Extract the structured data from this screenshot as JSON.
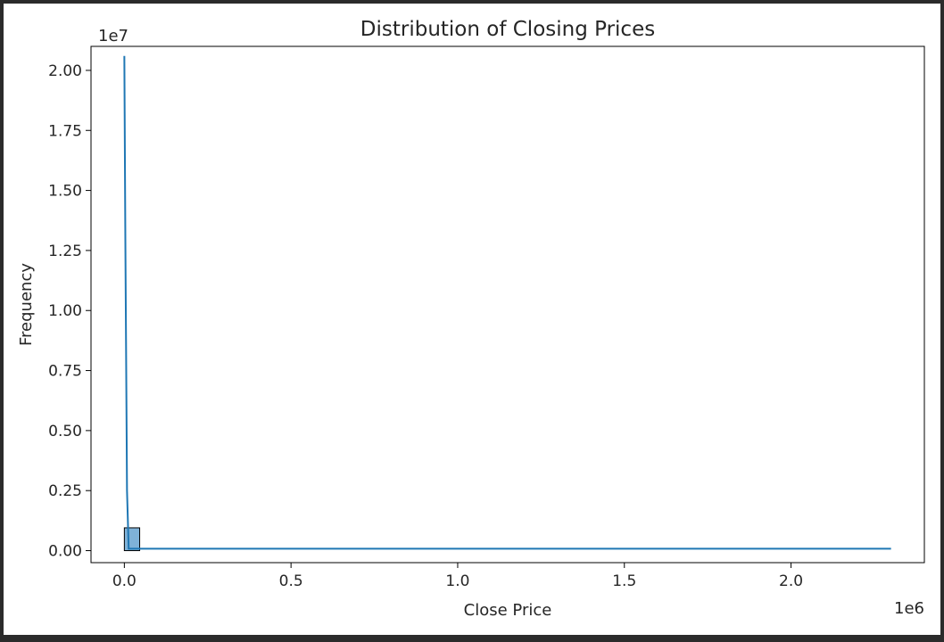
{
  "chart_data": {
    "type": "bar",
    "title": "Distribution of Closing Prices",
    "xlabel": "Close Price",
    "ylabel": "Frequency",
    "x_scale_label": "1e6",
    "y_scale_label": "1e7",
    "xlim": [
      -0.1,
      2.4
    ],
    "ylim": [
      -0.05,
      2.1
    ],
    "x_ticks": [
      0.0,
      0.5,
      1.0,
      1.5,
      2.0
    ],
    "x_tick_labels": [
      "0.0",
      "0.5",
      "1.0",
      "1.5",
      "2.0"
    ],
    "y_ticks": [
      0.0,
      0.25,
      0.5,
      0.75,
      1.0,
      1.25,
      1.5,
      1.75,
      2.0
    ],
    "y_tick_labels": [
      "0.00",
      "0.25",
      "0.50",
      "0.75",
      "1.00",
      "1.25",
      "1.50",
      "1.75",
      "2.00"
    ],
    "bars": [
      {
        "x0": 0.0,
        "x1": 0.046,
        "value": 0.095
      }
    ],
    "kde_line": {
      "x": [
        0.0,
        0.003,
        0.008,
        0.013,
        0.5,
        1.0,
        1.5,
        2.0,
        2.3
      ],
      "y": [
        2.06,
        1.3,
        0.25,
        0.008,
        0.008,
        0.008,
        0.008,
        0.008,
        0.008
      ]
    },
    "grid": false,
    "colors": {
      "bar_fill": "#7fb2d8",
      "bar_edge": "#000000",
      "line": "#1f77b4"
    }
  }
}
